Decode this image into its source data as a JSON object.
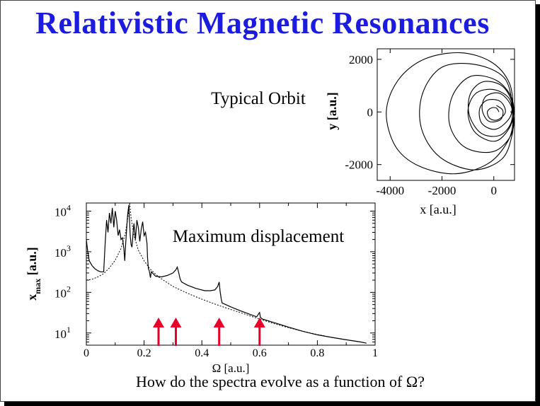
{
  "slide": {
    "title": "Relativistic Magnetic Resonances",
    "question": "How do the spectra evolve as a function of Ω?"
  },
  "chart_data": [
    {
      "type": "line",
      "title": "Typical Orbit",
      "xlabel": "x  [a.u.]",
      "ylabel": "y [a.u.]",
      "xlim": [
        -4500,
        800
      ],
      "ylim": [
        -2600,
        2400
      ],
      "xticks": [
        -4000,
        -2000,
        0
      ],
      "xtick_labels": [
        "-4000",
        "-2000",
        "0"
      ],
      "yticks": [
        -2000,
        0,
        2000
      ],
      "ytick_labels": [
        "-2000",
        "0",
        "2000"
      ],
      "description_series": "spiral orbit",
      "series": [
        {
          "points": [
            [
              200,
              0
            ],
            [
              100,
              150
            ],
            [
              -100,
              150
            ],
            [
              -250,
              0
            ],
            [
              -150,
              -250
            ],
            [
              150,
              -300
            ],
            [
              450,
              0
            ],
            [
              250,
              400
            ],
            [
              -250,
              450
            ],
            [
              -550,
              100
            ],
            [
              -450,
              -450
            ],
            [
              100,
              -650
            ],
            [
              650,
              -150
            ],
            [
              600,
              500
            ],
            [
              0,
              850
            ],
            [
              -700,
              700
            ],
            [
              -1000,
              0
            ],
            [
              -700,
              -800
            ],
            [
              100,
              -1100
            ],
            [
              700,
              -400
            ],
            [
              700,
              500
            ],
            [
              100,
              1200
            ],
            [
              -900,
              1350
            ],
            [
              -1600,
              600
            ],
            [
              -1700,
              -500
            ],
            [
              -1100,
              -1350
            ],
            [
              0,
              -1500
            ],
            [
              700,
              -800
            ],
            [
              720,
              200
            ],
            [
              400,
              1300
            ],
            [
              -700,
              1800
            ],
            [
              -2000,
              1700
            ],
            [
              -2750,
              700
            ],
            [
              -2800,
              -600
            ],
            [
              -2100,
              -1700
            ],
            [
              -800,
              -2200
            ],
            [
              300,
              -1800
            ],
            [
              700,
              -900
            ],
            [
              750,
              0
            ],
            [
              600,
              1100
            ],
            [
              -100,
              1900
            ],
            [
              -1300,
              2250
            ],
            [
              -2700,
              2000
            ],
            [
              -3700,
              1200
            ],
            [
              -4150,
              0
            ],
            [
              -3800,
              -1300
            ],
            [
              -2900,
              -2050
            ],
            [
              -1500,
              -2350
            ],
            [
              -200,
              -1950
            ],
            [
              550,
              -1100
            ],
            [
              750,
              -300
            ],
            [
              700,
              400
            ],
            [
              300,
              1000
            ],
            [
              -400,
              1150
            ],
            [
              -900,
              700
            ],
            [
              -950,
              -100
            ],
            [
              -500,
              -800
            ],
            [
              200,
              -900
            ],
            [
              650,
              -450
            ],
            [
              680,
              200
            ],
            [
              250,
              700
            ],
            [
              -300,
              600
            ],
            [
              -450,
              100
            ],
            [
              -200,
              -350
            ],
            [
              250,
              -300
            ],
            [
              350,
              50
            ],
            [
              100,
              250
            ]
          ]
        }
      ]
    },
    {
      "type": "line",
      "title": "Maximum displacement",
      "xlabel": "Ω [a.u.]",
      "ylabel": "x",
      "ylabel_sub": "max",
      "ylabel_unit": "[a.u.]",
      "xlim": [
        0,
        1
      ],
      "ylim_log10": [
        0.7,
        4.2
      ],
      "log_y": true,
      "xticks": [
        0,
        0.2,
        0.4,
        0.6,
        0.8,
        1
      ],
      "xtick_labels": [
        "0",
        "0.2",
        "0.4",
        "0.6",
        "0.8",
        "1"
      ],
      "ytick_base": [
        "10",
        "10",
        "10",
        "10"
      ],
      "ytick_exp": [
        "1",
        "2",
        "3",
        "4"
      ],
      "yticks_log10": [
        1,
        2,
        3,
        4
      ],
      "arrows_x": [
        0.25,
        0.31,
        0.46,
        0.6
      ],
      "arrow_color": "#e8002a",
      "series": [
        {
          "style": "solid",
          "points": [
            [
              0.0,
              2000
            ],
            [
              0.005,
              1000
            ],
            [
              0.01,
              600
            ],
            [
              0.02,
              450
            ],
            [
              0.03,
              380
            ],
            [
              0.04,
              340
            ],
            [
              0.05,
              320
            ],
            [
              0.06,
              320
            ],
            [
              0.065,
              1500
            ],
            [
              0.07,
              6000
            ],
            [
              0.075,
              3000
            ],
            [
              0.08,
              9000
            ],
            [
              0.085,
              5000
            ],
            [
              0.09,
              12000
            ],
            [
              0.095,
              4000
            ],
            [
              0.1,
              10000
            ],
            [
              0.105,
              6000
            ],
            [
              0.11,
              2500
            ],
            [
              0.115,
              3500
            ],
            [
              0.12,
              2000
            ],
            [
              0.125,
              2200
            ],
            [
              0.13,
              1200
            ],
            [
              0.133,
              600
            ],
            [
              0.136,
              1500
            ],
            [
              0.14,
              4000
            ],
            [
              0.143,
              8000
            ],
            [
              0.147,
              14000
            ],
            [
              0.152,
              2500
            ],
            [
              0.155,
              1500
            ],
            [
              0.158,
              1300
            ],
            [
              0.162,
              3000
            ],
            [
              0.165,
              5000
            ],
            [
              0.17,
              2000
            ],
            [
              0.175,
              6000
            ],
            [
              0.18,
              4000
            ],
            [
              0.185,
              1800
            ],
            [
              0.19,
              3500
            ],
            [
              0.195,
              5500
            ],
            [
              0.2,
              2500
            ],
            [
              0.205,
              3000
            ],
            [
              0.21,
              1600
            ],
            [
              0.212,
              700
            ],
            [
              0.215,
              380
            ],
            [
              0.218,
              340
            ],
            [
              0.222,
              230
            ],
            [
              0.225,
              320
            ],
            [
              0.24,
              250
            ],
            [
              0.26,
              240
            ],
            [
              0.28,
              260
            ],
            [
              0.3,
              300
            ],
            [
              0.31,
              360
            ],
            [
              0.315,
              420
            ],
            [
              0.32,
              300
            ],
            [
              0.325,
              210
            ],
            [
              0.33,
              180
            ],
            [
              0.35,
              150
            ],
            [
              0.38,
              125
            ],
            [
              0.41,
              110
            ],
            [
              0.43,
              110
            ],
            [
              0.445,
              115
            ],
            [
              0.455,
              140
            ],
            [
              0.46,
              180
            ],
            [
              0.463,
              110
            ],
            [
              0.467,
              70
            ],
            [
              0.47,
              55
            ],
            [
              0.5,
              44
            ],
            [
              0.53,
              36
            ],
            [
              0.56,
              30
            ],
            [
              0.59,
              25
            ],
            [
              0.597,
              30
            ],
            [
              0.6,
              32
            ],
            [
              0.603,
              24
            ],
            [
              0.61,
              22
            ],
            [
              0.65,
              18
            ],
            [
              0.7,
              14
            ],
            [
              0.75,
              11
            ],
            [
              0.8,
              9
            ],
            [
              0.85,
              7.8
            ],
            [
              0.9,
              6.8
            ],
            [
              0.95,
              6.0
            ],
            [
              0.97,
              5.6
            ]
          ]
        },
        {
          "style": "dashed",
          "points": [
            [
              0.0,
              200
            ],
            [
              0.02,
              210
            ],
            [
              0.04,
              240
            ],
            [
              0.06,
              290
            ],
            [
              0.08,
              400
            ],
            [
              0.1,
              620
            ],
            [
              0.12,
              1200
            ],
            [
              0.135,
              2800
            ],
            [
              0.145,
              8000
            ],
            [
              0.15,
              16000
            ],
            [
              0.155,
              7000
            ],
            [
              0.165,
              2500
            ],
            [
              0.18,
              1100
            ],
            [
              0.2,
              600
            ],
            [
              0.22,
              380
            ],
            [
              0.25,
              240
            ],
            [
              0.3,
              140
            ],
            [
              0.35,
              95
            ],
            [
              0.4,
              68
            ],
            [
              0.45,
              50
            ],
            [
              0.5,
              38
            ],
            [
              0.55,
              29
            ],
            [
              0.6,
              22
            ],
            [
              0.65,
              17
            ],
            [
              0.7,
              13.5
            ],
            [
              0.75,
              11
            ],
            [
              0.8,
              9.2
            ],
            [
              0.85,
              7.8
            ],
            [
              0.9,
              6.8
            ],
            [
              0.95,
              6.0
            ]
          ]
        }
      ]
    }
  ]
}
